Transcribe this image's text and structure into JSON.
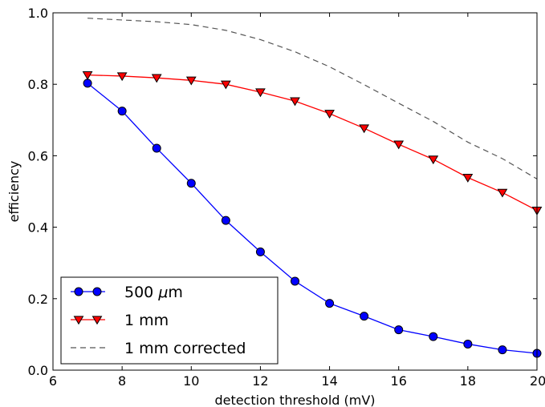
{
  "chart_data": {
    "type": "line",
    "title": "",
    "xlabel": "detection threshold (mV)",
    "ylabel": "efficiency",
    "xlim": [
      6,
      20
    ],
    "ylim": [
      0.0,
      1.0
    ],
    "xticks": [
      6,
      8,
      10,
      12,
      14,
      16,
      18,
      20
    ],
    "yticks": [
      0.0,
      0.2,
      0.4,
      0.6,
      0.8,
      1.0
    ],
    "xtick_labels": [
      "6",
      "8",
      "10",
      "12",
      "14",
      "16",
      "18",
      "20"
    ],
    "ytick_labels": [
      "0.0",
      "0.2",
      "0.4",
      "0.6",
      "0.8",
      "1.0"
    ],
    "grid": false,
    "legend_position": "bottom-left",
    "series": [
      {
        "name": "500 μm",
        "legend_prefix": "500 ",
        "legend_unit": "μm",
        "color": "#0000ff",
        "marker": "circle",
        "linestyle": "solid",
        "x": [
          7,
          8,
          9,
          10,
          11,
          12,
          13,
          14,
          15,
          16,
          17,
          18,
          19,
          20
        ],
        "y": [
          0.803,
          0.725,
          0.621,
          0.523,
          0.419,
          0.331,
          0.249,
          0.187,
          0.151,
          0.113,
          0.094,
          0.073,
          0.057,
          0.047
        ]
      },
      {
        "name": "1 mm",
        "color": "#ff0000",
        "marker": "triangle-down",
        "linestyle": "solid",
        "x": [
          7,
          8,
          9,
          10,
          11,
          12,
          13,
          14,
          15,
          16,
          17,
          18,
          19,
          20
        ],
        "y": [
          0.826,
          0.823,
          0.818,
          0.811,
          0.8,
          0.778,
          0.753,
          0.718,
          0.677,
          0.632,
          0.59,
          0.539,
          0.497,
          0.447
        ]
      },
      {
        "name": "1 mm corrected",
        "color": "#555555",
        "marker": "none",
        "linestyle": "dashed",
        "x": [
          7,
          8,
          9,
          10,
          11,
          12,
          13,
          14,
          15,
          16,
          17,
          18,
          19,
          20
        ],
        "y": [
          0.985,
          0.98,
          0.975,
          0.967,
          0.951,
          0.925,
          0.891,
          0.849,
          0.799,
          0.747,
          0.696,
          0.638,
          0.592,
          0.535
        ]
      }
    ]
  }
}
